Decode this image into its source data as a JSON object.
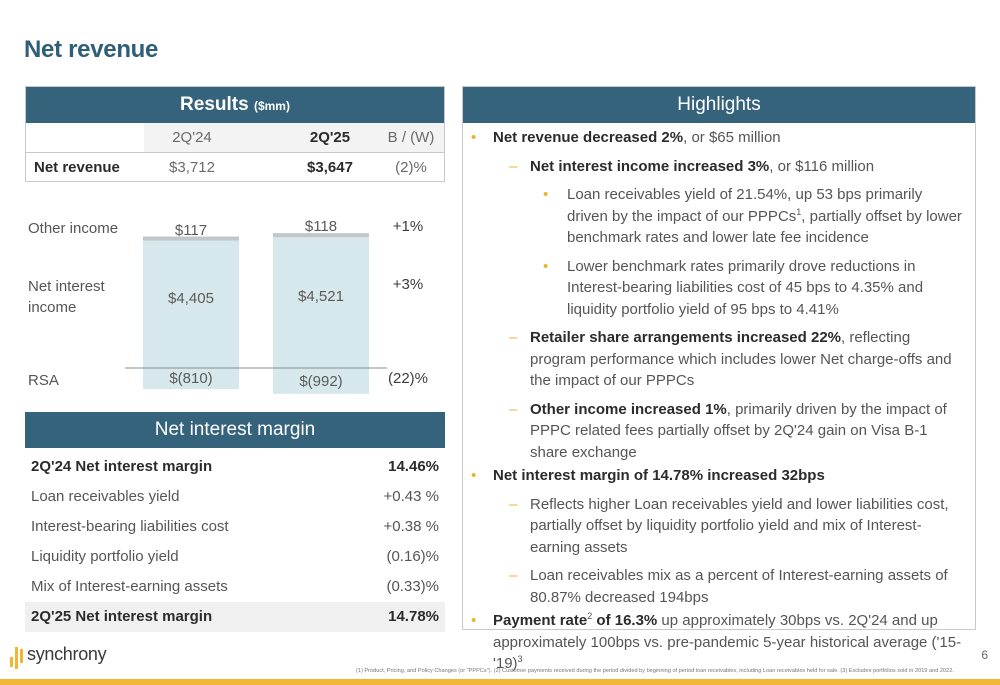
{
  "page": {
    "title": "Net revenue",
    "page_number": "6",
    "footnote": "(1) Product, Pricing, and Policy Changes (or \"PPPCs\"). (2) Customer payments received during the period divided by beginning of period loan receivables, including Loan receivables held for sale. (3) Excludes portfolios sold in 2019 and 2022.",
    "logo": "synchrony"
  },
  "results": {
    "title": "Results",
    "unit": "($mm)",
    "columns": [
      "2Q'24",
      "2Q'25",
      "B / (W)"
    ],
    "row": {
      "label": "Net revenue",
      "prior": "$3,712",
      "current": "$3,647",
      "change": "(2)%"
    }
  },
  "chart_data": {
    "type": "bar",
    "stacked": true,
    "categories": [
      "2Q'24",
      "2Q'25"
    ],
    "series": [
      {
        "name": "Other income",
        "values": [
          117,
          118
        ],
        "labels": [
          "$117",
          "$118"
        ],
        "change": "+1%"
      },
      {
        "name": "Net interest income",
        "values": [
          4405,
          4521
        ],
        "labels": [
          "$4,405",
          "$4,521"
        ],
        "change": "+3%"
      },
      {
        "name": "RSA",
        "values": [
          -810,
          -992
        ],
        "labels": [
          "$(810)",
          "$(992)"
        ],
        "change": "(22)%"
      }
    ],
    "category_labels_hidden": true,
    "ylim": [
      -1000,
      4700
    ],
    "colors": {
      "bar": "#d6e8eb",
      "other": "#c2c6c8",
      "baseline": "#8e8e8e"
    }
  },
  "nim": {
    "title": "Net interest margin",
    "rows": [
      {
        "label": "2Q'24 Net interest margin",
        "value": "14.46%"
      },
      {
        "label": "Loan receivables yield",
        "value": "+0.43 %"
      },
      {
        "label": "Interest-bearing liabilities cost",
        "value": "+0.38 %"
      },
      {
        "label": "Liquidity portfolio yield",
        "value": "(0.16)%"
      },
      {
        "label": "Mix of Interest-earning assets",
        "value": "(0.33)%"
      },
      {
        "label": "2Q'25 Net interest margin",
        "value": "14.78%"
      }
    ]
  },
  "highlights": {
    "title": "Highlights",
    "b1": {
      "bold": "Net revenue decreased 2%",
      "rest": ", or $65 million"
    },
    "b1a": {
      "bold": "Net interest income increased 3%",
      "rest": ", or $116 million"
    },
    "b1a1": {
      "pre": "Loan receivables yield of 21.54%, up 53 bps primarily driven by the impact of our PPPCs",
      "sup": "1",
      "post": ", partially offset by lower benchmark rates and lower late fee incidence"
    },
    "b1a2": {
      "text": "Lower benchmark rates primarily drove reductions in Interest-bearing liabilities cost of 45 bps to 4.35% and liquidity portfolio yield of 95 bps to 4.41%"
    },
    "b1b": {
      "bold": "Retailer share arrangements increased 22%",
      "rest": ", reflecting program performance which includes lower Net charge-offs and the impact of our PPPCs"
    },
    "b1c": {
      "bold": "Other income increased 1%",
      "rest": ", primarily driven by the impact of PPPC related fees partially offset by 2Q'24 gain on Visa B-1 share exchange"
    },
    "b2": {
      "bold": "Net interest margin of 14.78% increased 32bps"
    },
    "b2a": {
      "text": "Reflects higher Loan receivables yield and lower liabilities cost, partially offset by liquidity portfolio yield and mix of Interest-earning assets"
    },
    "b2b": {
      "text": "Loan receivables mix as a percent of Interest-earning assets of 80.87% decreased 194bps"
    },
    "b3": {
      "bold_pre": "Payment rate",
      "sup": "2",
      "bold_post": " of 16.3%",
      "rest": " up approximately 30bps vs. 2Q'24 and up approximately 100bps vs. pre-pandemic 5-year historical average ('15-'19)",
      "sup2": "3"
    }
  }
}
